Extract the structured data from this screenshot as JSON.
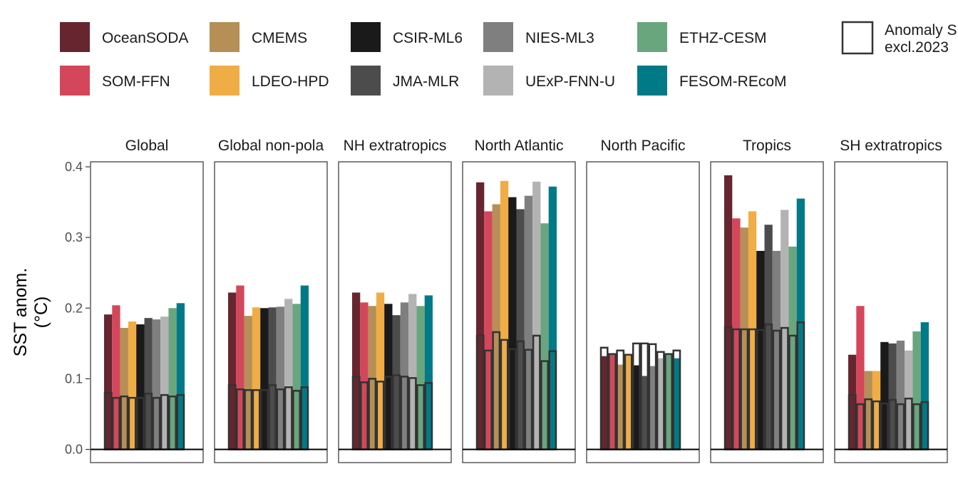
{
  "chart_data": {
    "type": "bar",
    "ylabel_line1": "SST anom.",
    "ylabel_line2": "(°C)",
    "ylim": [
      0,
      0.4
    ],
    "yticks": [
      0.0,
      0.1,
      0.2,
      0.3,
      0.4
    ],
    "ytick_labels": [
      "0.0",
      "0.1",
      "0.2",
      "0.3",
      "0.4"
    ],
    "grid": false,
    "legend_position": "top",
    "outline_legend_label_line1": "Anomaly S",
    "outline_legend_label_line2": "excl.2023",
    "products": [
      {
        "name": "OceanSODA",
        "color": "#67252f"
      },
      {
        "name": "SOM-FFN",
        "color": "#d4475b"
      },
      {
        "name": "CMEMS",
        "color": "#b58f55"
      },
      {
        "name": "LDEO-HPD",
        "color": "#f0ad45"
      },
      {
        "name": "CSIR-ML6",
        "color": "#1a1a1a"
      },
      {
        "name": "JMA-MLR",
        "color": "#4c4c4c"
      },
      {
        "name": "NIES-ML3",
        "color": "#7f7f7f"
      },
      {
        "name": "UExP-FNN-U",
        "color": "#b3b3b3"
      },
      {
        "name": "ETHZ-CESM",
        "color": "#69a67e"
      },
      {
        "name": "FESOM-REcoM",
        "color": "#007a87"
      }
    ],
    "panels": [
      {
        "title": "Global",
        "values": [
          0.191,
          0.204,
          0.172,
          0.181,
          0.177,
          0.186,
          0.184,
          0.188,
          0.2,
          0.207
        ],
        "excl2023": [
          0.08,
          0.073,
          0.075,
          0.073,
          0.073,
          0.079,
          0.073,
          0.077,
          0.075,
          0.077
        ]
      },
      {
        "title": "Global non-pola",
        "values": [
          0.222,
          0.232,
          0.189,
          0.201,
          0.2,
          0.201,
          0.202,
          0.213,
          0.206,
          0.232
        ],
        "excl2023": [
          0.091,
          0.085,
          0.084,
          0.084,
          0.084,
          0.091,
          0.085,
          0.088,
          0.083,
          0.088
        ]
      },
      {
        "title": "NH extratropics",
        "values": [
          0.222,
          0.208,
          0.203,
          0.222,
          0.206,
          0.19,
          0.208,
          0.22,
          0.203,
          0.218
        ],
        "excl2023": [
          0.103,
          0.095,
          0.1,
          0.096,
          0.103,
          0.105,
          0.103,
          0.101,
          0.091,
          0.094
        ]
      },
      {
        "title": "North Atlantic",
        "values": [
          0.378,
          0.337,
          0.347,
          0.38,
          0.357,
          0.34,
          0.359,
          0.379,
          0.32,
          0.372
        ],
        "excl2023": [
          0.161,
          0.14,
          0.166,
          0.155,
          0.142,
          0.153,
          0.141,
          0.161,
          0.125,
          0.139
        ]
      },
      {
        "title": "North Pacific",
        "values": [
          0.132,
          0.135,
          0.12,
          0.133,
          0.119,
          0.104,
          0.118,
          0.129,
          0.136,
          0.129
        ],
        "excl2023": [
          0.144,
          0.135,
          0.14,
          0.134,
          0.15,
          0.15,
          0.149,
          0.138,
          0.135,
          0.14
        ]
      },
      {
        "title": "Tropics",
        "values": [
          0.388,
          0.327,
          0.314,
          0.337,
          0.281,
          0.318,
          0.281,
          0.339,
          0.287,
          0.355
        ],
        "excl2023": [
          0.173,
          0.17,
          0.17,
          0.17,
          0.169,
          0.177,
          0.168,
          0.172,
          0.161,
          0.18
        ]
      },
      {
        "title": "SH extratropics",
        "values": [
          0.134,
          0.203,
          0.111,
          0.111,
          0.152,
          0.15,
          0.154,
          0.14,
          0.167,
          0.18
        ],
        "excl2023": [
          0.077,
          0.064,
          0.071,
          0.068,
          0.065,
          0.07,
          0.064,
          0.072,
          0.064,
          0.067
        ]
      }
    ]
  }
}
